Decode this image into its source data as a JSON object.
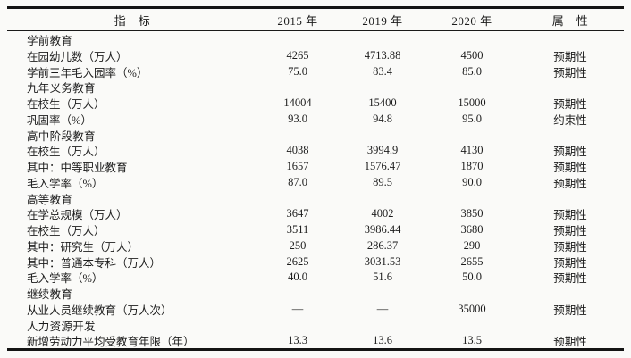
{
  "table": {
    "columns": {
      "indicator": "指　标",
      "y2015": "2015 年",
      "y2019": "2019 年",
      "y2020": "2020 年",
      "attribute": "属　性"
    },
    "rows": [
      {
        "type": "section",
        "label": "学前教育"
      },
      {
        "type": "data",
        "label": "在园幼儿数（万人）",
        "v2015": "4265",
        "v2019": "4713.88",
        "v2020": "4500",
        "attr": "预期性"
      },
      {
        "type": "data",
        "label": "学前三年毛入园率（%）",
        "v2015": "75.0",
        "v2019": "83.4",
        "v2020": "85.0",
        "attr": "预期性"
      },
      {
        "type": "section",
        "label": "九年义务教育"
      },
      {
        "type": "data",
        "label": "在校生（万人）",
        "v2015": "14004",
        "v2019": "15400",
        "v2020": "15000",
        "attr": "预期性"
      },
      {
        "type": "data",
        "label": "巩固率（%）",
        "v2015": "93.0",
        "v2019": "94.8",
        "v2020": "95.0",
        "attr": "约束性"
      },
      {
        "type": "section",
        "label": "高中阶段教育"
      },
      {
        "type": "data",
        "label": "在校生（万人）",
        "v2015": "4038",
        "v2019": "3994.9",
        "v2020": "4130",
        "attr": "预期性"
      },
      {
        "type": "data",
        "label": "其中：中等职业教育",
        "v2015": "1657",
        "v2019": "1576.47",
        "v2020": "1870",
        "attr": "预期性"
      },
      {
        "type": "data",
        "label": "毛入学率（%）",
        "v2015": "87.0",
        "v2019": "89.5",
        "v2020": "90.0",
        "attr": "预期性"
      },
      {
        "type": "section",
        "label": "高等教育"
      },
      {
        "type": "data",
        "label": "在学总规模（万人）",
        "v2015": "3647",
        "v2019": "4002",
        "v2020": "3850",
        "attr": "预期性"
      },
      {
        "type": "data",
        "label": "在校生（万人）",
        "v2015": "3511",
        "v2019": "3986.44",
        "v2020": "3680",
        "attr": "预期性"
      },
      {
        "type": "data",
        "label": "其中：研究生（万人）",
        "v2015": "250",
        "v2019": "286.37",
        "v2020": "290",
        "attr": "预期性"
      },
      {
        "type": "data",
        "label": "其中：普通本专科（万人）",
        "v2015": "2625",
        "v2019": "3031.53",
        "v2020": "2655",
        "attr": "预期性"
      },
      {
        "type": "data",
        "label": "毛入学率（%）",
        "v2015": "40.0",
        "v2019": "51.6",
        "v2020": "50.0",
        "attr": "预期性"
      },
      {
        "type": "section",
        "label": "继续教育"
      },
      {
        "type": "data",
        "label": "从业人员继续教育（万人次）",
        "v2015": "—",
        "v2019": "—",
        "v2020": "35000",
        "attr": "预期性"
      },
      {
        "type": "section",
        "label": "人力资源开发"
      },
      {
        "type": "data",
        "label": "新增劳动力平均受教育年限（年）",
        "v2015": "13.3",
        "v2019": "13.6",
        "v2020": "13.5",
        "attr": "预期性"
      }
    ]
  },
  "colors": {
    "background": "#fafaf8",
    "text": "#1c1c1c",
    "border": "#141414"
  }
}
